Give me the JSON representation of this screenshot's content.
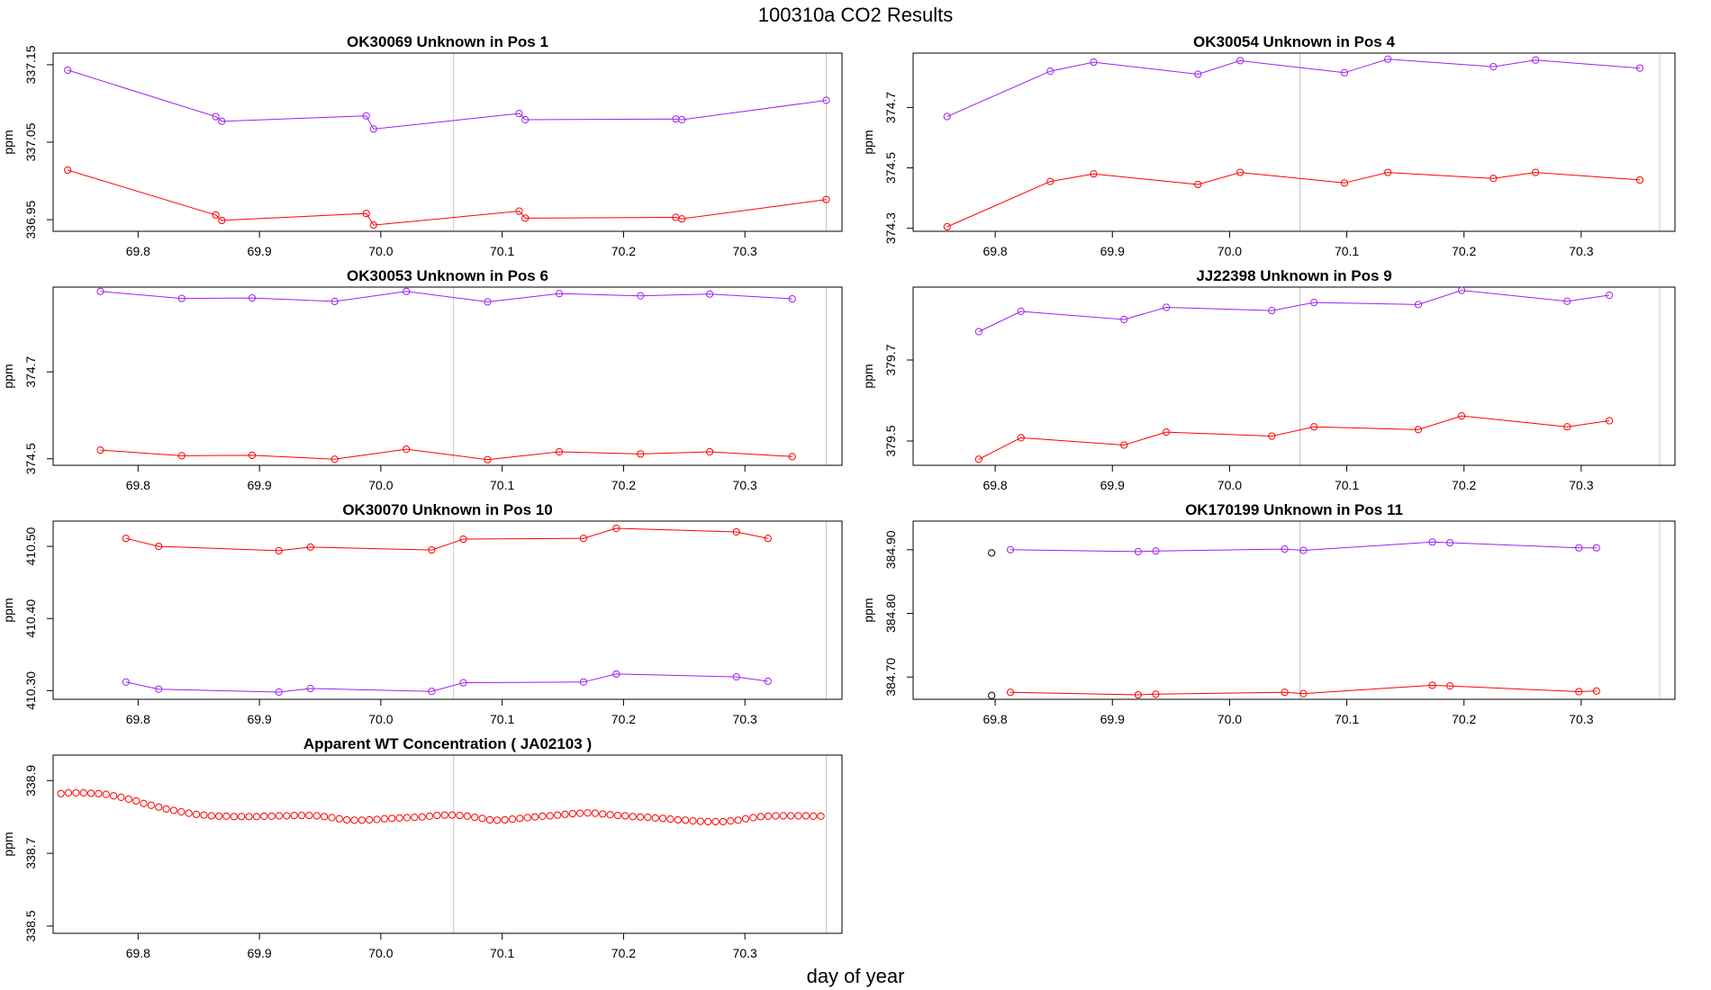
{
  "page": {
    "title": "100310a  CO2 Results",
    "xlabel": "day of year"
  },
  "colors": {
    "series_purple": "#a020f0",
    "series_red": "#ff0000",
    "marker_black": "#000000",
    "vline": "#c8c8c8",
    "frame": "#000000"
  },
  "chart_data": [
    {
      "type": "line",
      "title": "OK30069    Unknown in Pos 1",
      "xlabel": "",
      "ylabel": "ppm",
      "xlim": [
        69.73,
        70.38
      ],
      "xticks": [
        69.8,
        69.9,
        70.0,
        70.1,
        70.2,
        70.3
      ],
      "xtick_labels": [
        "69.8",
        "69.9",
        "70.0",
        "70.1",
        "70.2",
        "70.3"
      ],
      "ylim": [
        336.935,
        337.165
      ],
      "yticks": [
        336.95,
        337.05,
        337.15
      ],
      "ytick_labels": [
        "336.95",
        "337.05",
        "337.15"
      ],
      "vlines": [
        70.06,
        70.367
      ],
      "series": [
        {
          "color": "#a020f0",
          "lines": true,
          "x": [
            69.742,
            69.864,
            69.869,
            69.988,
            69.994,
            70.114,
            70.119,
            70.243,
            70.248,
            70.367
          ],
          "y": [
            337.143,
            337.083,
            337.077,
            337.084,
            337.067,
            337.087,
            337.079,
            337.08,
            337.079,
            337.104
          ]
        },
        {
          "color": "#ff0000",
          "lines": true,
          "x": [
            69.742,
            69.864,
            69.869,
            69.988,
            69.994,
            70.114,
            70.119,
            70.243,
            70.248,
            70.367
          ],
          "y": [
            337.014,
            336.956,
            336.949,
            336.958,
            336.943,
            336.961,
            336.952,
            336.953,
            336.951,
            336.976
          ]
        }
      ]
    },
    {
      "type": "line",
      "title": "OK30054    Unknown in Pos 4",
      "xlabel": "",
      "ylabel": "ppm",
      "xlim": [
        69.73,
        70.38
      ],
      "xticks": [
        69.8,
        69.9,
        70.0,
        70.1,
        70.2,
        70.3
      ],
      "xtick_labels": [
        "69.8",
        "69.9",
        "70.0",
        "70.1",
        "70.2",
        "70.3"
      ],
      "ylim": [
        374.29,
        374.88
      ],
      "yticks": [
        374.3,
        374.5,
        374.7
      ],
      "ytick_labels": [
        "374.3",
        "374.5",
        "374.7"
      ],
      "vlines": [
        70.06,
        70.367
      ],
      "series": [
        {
          "color": "#a020f0",
          "lines": true,
          "x": [
            69.759,
            69.847,
            69.884,
            69.973,
            70.009,
            70.098,
            70.135,
            70.225,
            70.261,
            70.35
          ],
          "y": [
            374.67,
            374.82,
            374.85,
            374.81,
            374.855,
            374.815,
            374.86,
            374.835,
            374.857,
            374.83
          ]
        },
        {
          "color": "#ff0000",
          "lines": true,
          "x": [
            69.759,
            69.847,
            69.884,
            69.973,
            70.009,
            70.098,
            70.135,
            70.225,
            70.261,
            70.35
          ],
          "y": [
            374.305,
            374.455,
            374.48,
            374.445,
            374.485,
            374.45,
            374.485,
            374.465,
            374.485,
            374.46
          ]
        }
      ]
    },
    {
      "type": "line",
      "title": "OK30053    Unknown in Pos 6",
      "xlabel": "",
      "ylabel": "ppm",
      "xlim": [
        69.73,
        70.38
      ],
      "xticks": [
        69.8,
        69.9,
        70.0,
        70.1,
        70.2,
        70.3
      ],
      "xtick_labels": [
        "69.8",
        "69.9",
        "70.0",
        "70.1",
        "70.2",
        "70.3"
      ],
      "ylim": [
        374.485,
        374.895
      ],
      "yticks": [
        374.5,
        374.7
      ],
      "ytick_labels": [
        "374.5",
        "374.7"
      ],
      "vlines": [
        70.06,
        70.367
      ],
      "series": [
        {
          "color": "#a020f0",
          "lines": true,
          "x": [
            69.769,
            69.836,
            69.894,
            69.962,
            70.021,
            70.088,
            70.147,
            70.214,
            70.271,
            70.339
          ],
          "y": [
            374.885,
            374.869,
            374.87,
            374.862,
            374.885,
            374.861,
            374.88,
            374.875,
            374.879,
            374.868
          ]
        },
        {
          "color": "#ff0000",
          "lines": true,
          "x": [
            69.769,
            69.836,
            69.894,
            69.962,
            70.021,
            70.088,
            70.147,
            70.214,
            70.271,
            70.339
          ],
          "y": [
            374.52,
            374.507,
            374.508,
            374.499,
            374.522,
            374.498,
            374.516,
            374.511,
            374.516,
            374.505
          ]
        }
      ]
    },
    {
      "type": "line",
      "title": "JJ22398    Unknown in Pos 9",
      "xlabel": "",
      "ylabel": "ppm",
      "xlim": [
        69.73,
        70.38
      ],
      "xticks": [
        69.8,
        69.9,
        70.0,
        70.1,
        70.2,
        70.3
      ],
      "xtick_labels": [
        "69.8",
        "69.9",
        "70.0",
        "70.1",
        "70.2",
        "70.3"
      ],
      "ylim": [
        379.44,
        379.88
      ],
      "yticks": [
        379.5,
        379.7
      ],
      "ytick_labels": [
        "379.5",
        "379.7"
      ],
      "vlines": [
        70.06,
        70.367
      ],
      "series": [
        {
          "color": "#a020f0",
          "lines": true,
          "x": [
            69.786,
            69.822,
            69.91,
            69.946,
            70.036,
            70.072,
            70.161,
            70.198,
            70.288,
            70.324
          ],
          "y": [
            379.77,
            379.82,
            379.8,
            379.83,
            379.822,
            379.842,
            379.837,
            379.872,
            379.845,
            379.86
          ]
        },
        {
          "color": "#ff0000",
          "lines": true,
          "x": [
            69.786,
            69.822,
            69.91,
            69.946,
            70.036,
            70.072,
            70.161,
            70.198,
            70.288,
            70.324
          ],
          "y": [
            379.455,
            379.508,
            379.49,
            379.522,
            379.512,
            379.535,
            379.528,
            379.562,
            379.535,
            379.55
          ]
        }
      ]
    },
    {
      "type": "line",
      "title": "OK30070    Unknown in Pos 10",
      "xlabel": "",
      "ylabel": "ppm",
      "xlim": [
        69.73,
        70.38
      ],
      "xticks": [
        69.8,
        69.9,
        70.0,
        70.1,
        70.2,
        70.3
      ],
      "xtick_labels": [
        "69.8",
        "69.9",
        "70.0",
        "70.1",
        "70.2",
        "70.3"
      ],
      "ylim": [
        410.288,
        410.535
      ],
      "yticks": [
        410.3,
        410.4,
        410.5
      ],
      "ytick_labels": [
        "410.30",
        "410.40",
        "410.50"
      ],
      "vlines": [
        70.06,
        70.367
      ],
      "series": [
        {
          "color": "#ff0000",
          "lines": true,
          "x": [
            69.79,
            69.817,
            69.916,
            69.942,
            70.042,
            70.068,
            70.167,
            70.194,
            70.293,
            70.319
          ],
          "y": [
            410.511,
            410.5,
            410.494,
            410.499,
            410.495,
            410.51,
            410.511,
            410.525,
            410.52,
            410.511
          ]
        },
        {
          "color": "#a020f0",
          "lines": true,
          "x": [
            69.79,
            69.817,
            69.916,
            69.942,
            70.042,
            70.068,
            70.167,
            70.194,
            70.293,
            70.319
          ],
          "y": [
            410.312,
            410.302,
            410.298,
            410.303,
            410.299,
            410.311,
            410.312,
            410.323,
            410.319,
            410.313
          ]
        }
      ]
    },
    {
      "type": "line",
      "title": "OK170199    Unknown in Pos 11",
      "xlabel": "",
      "ylabel": "ppm",
      "xlim": [
        69.73,
        70.38
      ],
      "xticks": [
        69.8,
        69.9,
        70.0,
        70.1,
        70.2,
        70.3
      ],
      "xtick_labels": [
        "69.8",
        "69.9",
        "70.0",
        "70.1",
        "70.2",
        "70.3"
      ],
      "ylim": [
        384.665,
        384.945
      ],
      "yticks": [
        384.7,
        384.8,
        384.9
      ],
      "ytick_labels": [
        "384.70",
        "384.80",
        "384.90"
      ],
      "vlines": [
        70.06,
        70.367
      ],
      "series": [
        {
          "color": "#a020f0",
          "lines": true,
          "x": [
            69.813,
            69.922,
            69.937,
            70.047,
            70.063,
            70.173,
            70.188,
            70.298,
            70.313
          ],
          "y": [
            384.9,
            384.897,
            384.898,
            384.901,
            384.899,
            384.912,
            384.911,
            384.903,
            384.903
          ]
        },
        {
          "color": "#ff0000",
          "lines": true,
          "x": [
            69.813,
            69.922,
            69.937,
            70.047,
            70.063,
            70.173,
            70.188,
            70.298,
            70.313
          ],
          "y": [
            384.676,
            384.672,
            384.673,
            384.676,
            384.674,
            384.687,
            384.686,
            384.677,
            384.678
          ]
        },
        {
          "color": "#000000",
          "lines": false,
          "x": [
            69.797,
            69.797
          ],
          "y": [
            384.895,
            384.671
          ]
        }
      ]
    },
    {
      "type": "scatter",
      "title": "Apparent WT Concentration ( JA02103 )",
      "xlabel": "",
      "ylabel": "ppm",
      "xlim": [
        69.73,
        70.38
      ],
      "xticks": [
        69.8,
        69.9,
        70.0,
        70.1,
        70.2,
        70.3
      ],
      "xtick_labels": [
        "69.8",
        "69.9",
        "70.0",
        "70.1",
        "70.2",
        "70.3"
      ],
      "ylim": [
        338.48,
        338.97
      ],
      "yticks": [
        338.5,
        338.7,
        338.9
      ],
      "ytick_labels": [
        "338.5",
        "338.7",
        "338.9"
      ],
      "vlines": [
        70.06,
        70.367
      ],
      "series": [
        {
          "color": "#ff0000",
          "lines": false,
          "x_start": 69.7364,
          "x_step": 0.0062,
          "count": 102,
          "y": [
            338.864,
            338.866,
            338.866,
            338.866,
            338.865,
            338.864,
            338.862,
            338.858,
            338.854,
            338.849,
            338.844,
            338.837,
            338.832,
            338.827,
            338.822,
            338.818,
            338.814,
            338.81,
            338.807,
            338.805,
            338.803,
            338.802,
            338.802,
            338.801,
            338.801,
            338.801,
            338.801,
            338.802,
            338.802,
            338.803,
            338.803,
            338.804,
            338.804,
            338.804,
            338.803,
            338.801,
            338.798,
            338.795,
            338.792,
            338.791,
            338.791,
            338.792,
            338.793,
            338.795,
            338.796,
            338.797,
            338.798,
            338.799,
            338.8,
            338.802,
            338.804,
            338.805,
            338.805,
            338.804,
            338.802,
            338.799,
            338.796,
            338.792,
            338.791,
            338.792,
            338.794,
            338.796,
            338.798,
            338.8,
            338.802,
            338.803,
            338.805,
            338.807,
            338.809,
            338.81,
            338.811,
            338.81,
            338.808,
            338.806,
            338.804,
            338.803,
            338.801,
            338.8,
            338.799,
            338.797,
            338.796,
            338.794,
            338.792,
            338.791,
            338.789,
            338.788,
            338.787,
            338.787,
            338.787,
            338.789,
            338.791,
            338.795,
            338.798,
            338.801,
            338.802,
            338.803,
            338.803,
            338.803,
            338.803,
            338.803,
            338.802,
            338.802
          ]
        }
      ]
    }
  ]
}
